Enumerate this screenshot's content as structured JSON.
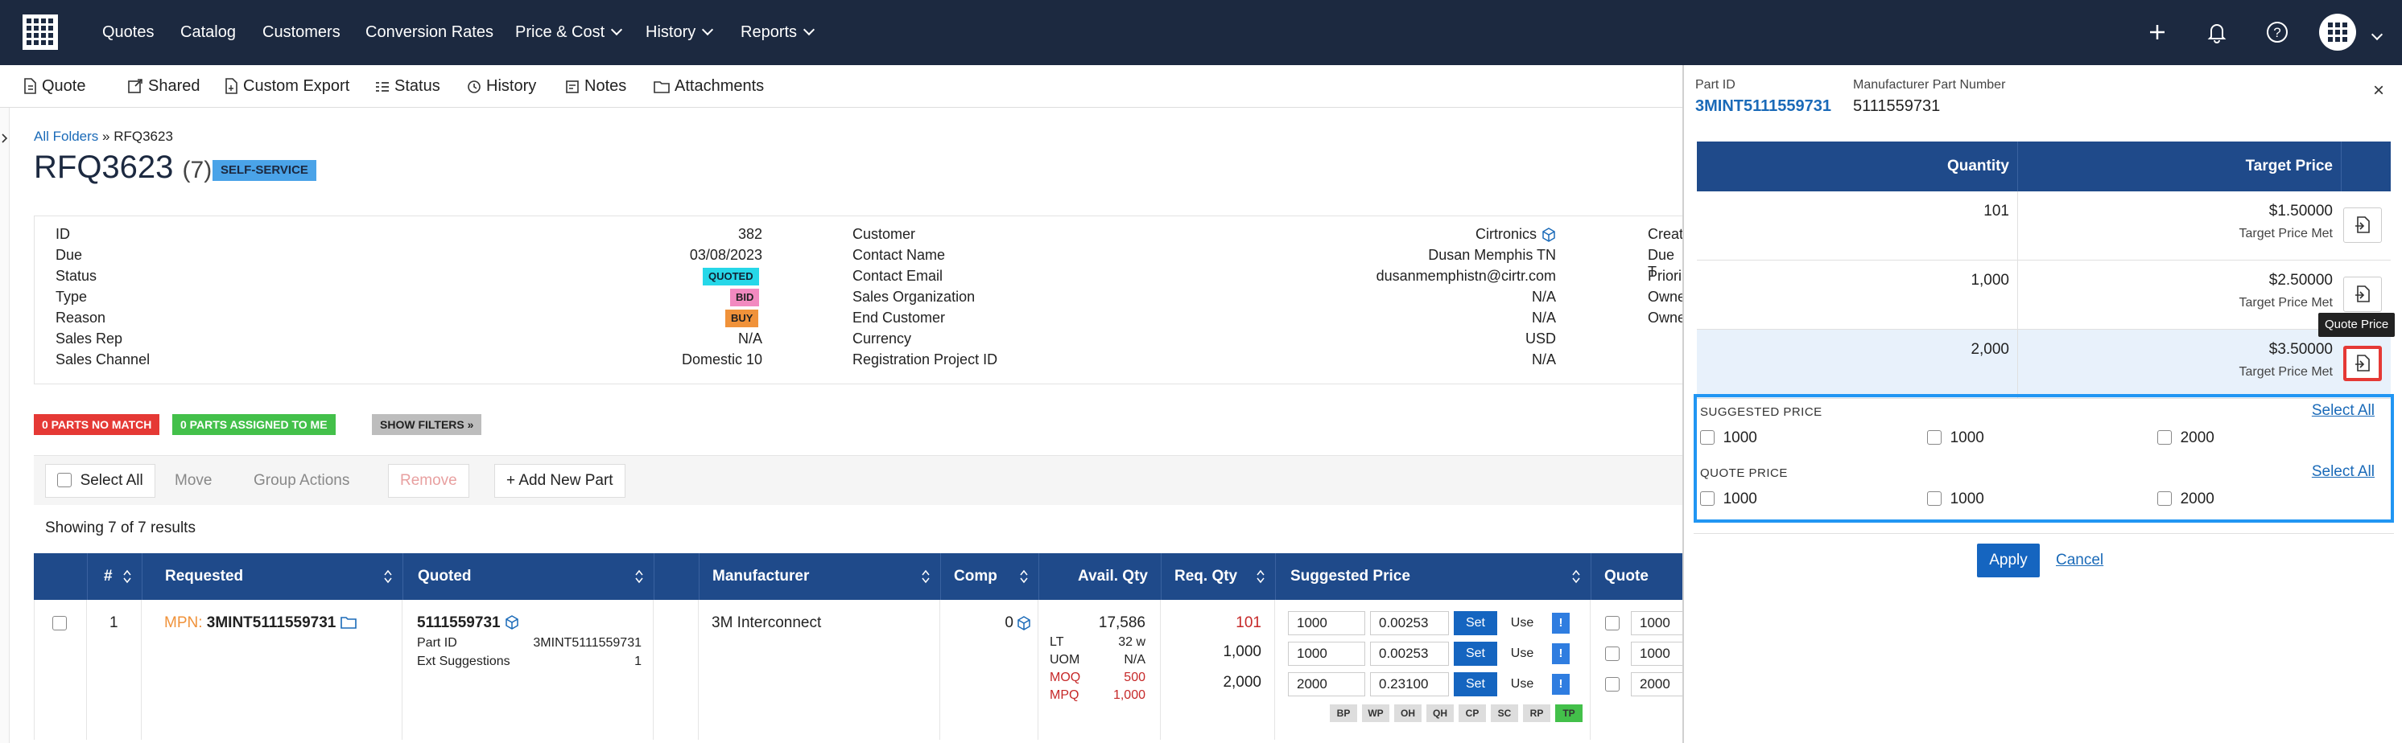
{
  "nav": {
    "items": [
      "Quotes",
      "Catalog",
      "Customers",
      "Conversion Rates",
      "Price & Cost",
      "History",
      "Reports"
    ]
  },
  "toolbar": {
    "quote": "Quote",
    "shared": "Shared",
    "custom_export": "Custom Export",
    "status": "Status",
    "history": "History",
    "notes": "Notes",
    "attachments": "Attachments"
  },
  "breadcrumb": {
    "root": "All Folders",
    "sep": " » ",
    "current": "RFQ3623"
  },
  "title": {
    "name": "RFQ3623",
    "count": "(7)",
    "badge": "SELF-SERVICE"
  },
  "details": {
    "col1": [
      {
        "label": "ID",
        "value": "382"
      },
      {
        "label": "Due",
        "value": "03/08/2023"
      },
      {
        "label": "Status",
        "value": "QUOTED"
      },
      {
        "label": "Type",
        "value": "BID"
      },
      {
        "label": "Reason",
        "value": "BUY"
      },
      {
        "label": "Sales Rep",
        "value": "N/A"
      },
      {
        "label": "Sales Channel",
        "value": "Domestic 10"
      }
    ],
    "col2": [
      {
        "label": "Customer",
        "value": "Cirtronics"
      },
      {
        "label": "Contact Name",
        "value": "Dusan Memphis TN"
      },
      {
        "label": "Contact Email",
        "value": "dusanmemphistn@cirtr.com"
      },
      {
        "label": "Sales Organization",
        "value": "N/A"
      },
      {
        "label": "End Customer",
        "value": "N/A"
      },
      {
        "label": "Currency",
        "value": "USD"
      },
      {
        "label": "Registration Project ID",
        "value": "N/A"
      }
    ],
    "col3": [
      "Creat",
      "Due T",
      "Priori",
      "Owne",
      "Owne"
    ]
  },
  "filters": {
    "no_match": "0 PARTS NO MATCH",
    "assigned": "0 PARTS ASSIGNED TO ME",
    "show": "SHOW FILTERS »"
  },
  "actions": {
    "select_all": "Select All",
    "move": "Move",
    "group": "Group Actions",
    "remove": "Remove",
    "add_part": "+ Add New Part"
  },
  "showing": "Showing 7 of 7 results",
  "grid": {
    "headers": {
      "num": "#",
      "requested": "Requested",
      "quoted": "Quoted",
      "manufacturer": "Manufacturer",
      "comp": "Comp",
      "avail": "Avail. Qty",
      "req": "Req. Qty",
      "suggested": "Suggested Price",
      "quote": "Quote Price"
    },
    "row": {
      "num": "1",
      "mpn_label": "MPN:",
      "mpn": "3MINT5111559731",
      "quoted_part": "5111559731",
      "part_id_label": "Part ID",
      "part_id": "3MINT5111559731",
      "ext_label": "Ext Suggestions",
      "ext": "1",
      "manufacturer": "3M Interconnect",
      "comp": "0",
      "avail_qty": "17,586",
      "lt_label": "LT",
      "lt": "32 w",
      "uom_label": "UOM",
      "uom": "N/A",
      "moq_label": "MOQ",
      "moq": "500",
      "mpq_label": "MPQ",
      "mpq": "1,000",
      "req_qty": [
        "101",
        "1,000",
        "2,000"
      ],
      "suggested": [
        {
          "qty": "1000",
          "price": "0.00253"
        },
        {
          "qty": "1000",
          "price": "0.00253"
        },
        {
          "qty": "2000",
          "price": "0.23100"
        }
      ],
      "set": "Set",
      "use": "Use",
      "ex": "!",
      "tags": [
        "BP",
        "WP",
        "OH",
        "QH",
        "CP",
        "SC",
        "RP",
        "TP"
      ],
      "quote_qty": [
        "1000",
        "1000",
        "2000"
      ]
    }
  },
  "panel": {
    "part_id_label": "Part ID",
    "part_id": "3MINT5111559731",
    "mpn_label": "Manufacturer Part Number",
    "mpn": "5111559731",
    "close": "×",
    "th_qty": "Quantity",
    "th_target": "Target Price",
    "rows": [
      {
        "qty": "101",
        "price": "$1.50000",
        "note": "Target Price Met"
      },
      {
        "qty": "1,000",
        "price": "$2.50000",
        "note": "Target Price Met"
      },
      {
        "qty": "2,000",
        "price": "$3.50000",
        "note": "Target Price Met"
      }
    ],
    "tooltip": "Quote Price",
    "suggested_label": "SUGGESTED PRICE",
    "quote_label": "QUOTE PRICE",
    "select_all": "Select All",
    "suggested_opts": [
      "1000",
      "1000",
      "2000"
    ],
    "quote_opts": [
      "1000",
      "1000",
      "2000"
    ],
    "apply": "Apply",
    "cancel": "Cancel"
  },
  "colors": {
    "nav_bg": "#1c2940",
    "header_bg": "#1f4a8a",
    "accent": "#1565c0",
    "highlight": "#2196f3",
    "danger": "#e53935"
  }
}
